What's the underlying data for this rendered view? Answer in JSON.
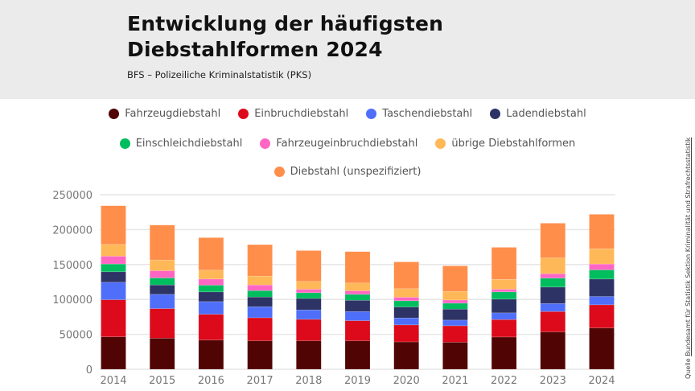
{
  "header": {
    "title": "Entwicklung der häufigsten Diebstahlformen 2024",
    "subtitle": "BFS – Polizeiliche Kriminalstatistik (PKS)"
  },
  "source": {
    "label": "Quelle",
    "link": "Bundesamt für Statistik Sektion Kriminalität und Strafrechtsstatistik"
  },
  "chart_data": {
    "type": "bar",
    "stacked": true,
    "title": "Entwicklung der häufigsten Diebstahlformen 2024",
    "xlabel": "",
    "ylabel": "",
    "ylim": [
      0,
      250000
    ],
    "yticks": [
      "0",
      "50000",
      "100000",
      "150000",
      "200000",
      "250000"
    ],
    "grid": true,
    "legend_position": "top",
    "categories": [
      "2014",
      "2015",
      "2016",
      "2017",
      "2018",
      "2019",
      "2020",
      "2021",
      "2022",
      "2023",
      "2024"
    ],
    "series": [
      {
        "name": "Fahrzeugdiebstahl",
        "color": "#510404",
        "values": [
          46500,
          44600,
          41900,
          40800,
          40800,
          40800,
          39200,
          38800,
          46200,
          53500,
          59200
        ]
      },
      {
        "name": "Einbruchdiebstahl",
        "color": "#dc0a1a",
        "values": [
          53100,
          42300,
          36900,
          33000,
          30700,
          28800,
          24300,
          23500,
          25000,
          29200,
          33100
        ]
      },
      {
        "name": "Taschendiebstahl",
        "color": "#4f6ffa",
        "values": [
          25000,
          20400,
          18100,
          15800,
          13500,
          13100,
          10000,
          8100,
          9600,
          11500,
          11900
        ]
      },
      {
        "name": "Ladendiebstahl",
        "color": "#2e3366",
        "values": [
          15000,
          13500,
          13900,
          13900,
          16500,
          16100,
          15700,
          15800,
          19600,
          23500,
          25000
        ]
      },
      {
        "name": "Einschleichdiebstahl",
        "color": "#00bd5e",
        "values": [
          11200,
          10000,
          9600,
          9200,
          8100,
          8500,
          8900,
          8400,
          10400,
          12700,
          13100
        ]
      },
      {
        "name": "Fahrzeugeinbruchdiebstahl",
        "color": "#ff66c4",
        "values": [
          11100,
          10300,
          8800,
          8100,
          5000,
          5000,
          5000,
          4600,
          3800,
          6500,
          8500
        ]
      },
      {
        "name": "übrige Diebstahlformen",
        "color": "#ffb858",
        "values": [
          16900,
          15400,
          12700,
          12700,
          11200,
          11200,
          12300,
          12300,
          14200,
          22700,
          21900
        ]
      },
      {
        "name": "Diebstahl (unspezifiziert)",
        "color": "#ff8e4b",
        "values": [
          55400,
          50000,
          46600,
          45000,
          44200,
          45000,
          38400,
          36600,
          45800,
          49600,
          49200
        ]
      }
    ]
  }
}
